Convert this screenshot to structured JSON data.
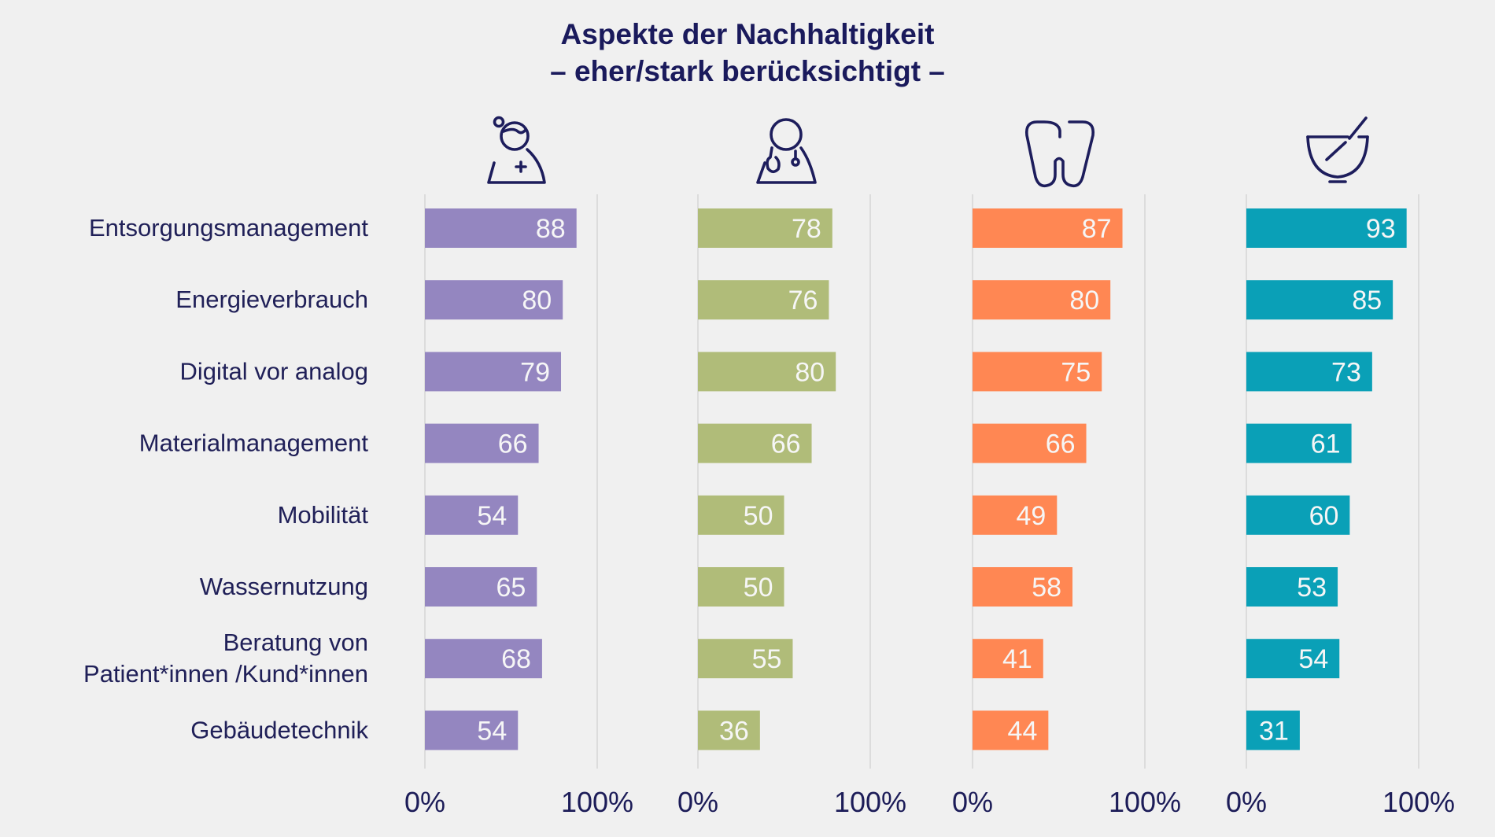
{
  "chart_data": {
    "type": "bar",
    "orientation": "horizontal",
    "title": "Aspekte der Nachhaltigkeit",
    "subtitle": "– eher/stark berücksichtigt –",
    "categories": [
      "Entsorgungsmanagement",
      "Energieverbrauch",
      "Digital vor analog",
      "Materialmanagement",
      "Mobilität",
      "Wassernutzung",
      "Beratung von Patient*innen /Kund*innen",
      "Gebäudetechnik"
    ],
    "category_lines": [
      [
        "Entsorgungsmanagement"
      ],
      [
        "Energieverbrauch"
      ],
      [
        "Digital vor analog"
      ],
      [
        "Materialmanagement"
      ],
      [
        "Mobilität"
      ],
      [
        "Wassernutzung"
      ],
      [
        "Beratung von",
        "Patient*innen /Kund*innen"
      ],
      [
        "Gebäudetechnik"
      ]
    ],
    "series": [
      {
        "name": "nurse",
        "icon": "nurse-icon",
        "color": "#9486c0",
        "values": [
          88,
          80,
          79,
          66,
          54,
          65,
          68,
          54
        ]
      },
      {
        "name": "doctor",
        "icon": "doctor-icon",
        "color": "#b0bc79",
        "values": [
          78,
          76,
          80,
          66,
          50,
          50,
          55,
          36
        ]
      },
      {
        "name": "dentist",
        "icon": "tooth-icon",
        "color": "#ff8753",
        "values": [
          87,
          80,
          75,
          66,
          49,
          58,
          41,
          44
        ]
      },
      {
        "name": "pharmacy",
        "icon": "mortar-pestle-icon",
        "color": "#0aa0b7",
        "values": [
          93,
          85,
          73,
          61,
          60,
          53,
          54,
          31
        ]
      }
    ],
    "xlim": [
      0,
      100
    ],
    "tick_labels": [
      "0%",
      "100%"
    ],
    "grid": true,
    "legend": "icons above each panel",
    "xlabel": "",
    "ylabel": ""
  }
}
